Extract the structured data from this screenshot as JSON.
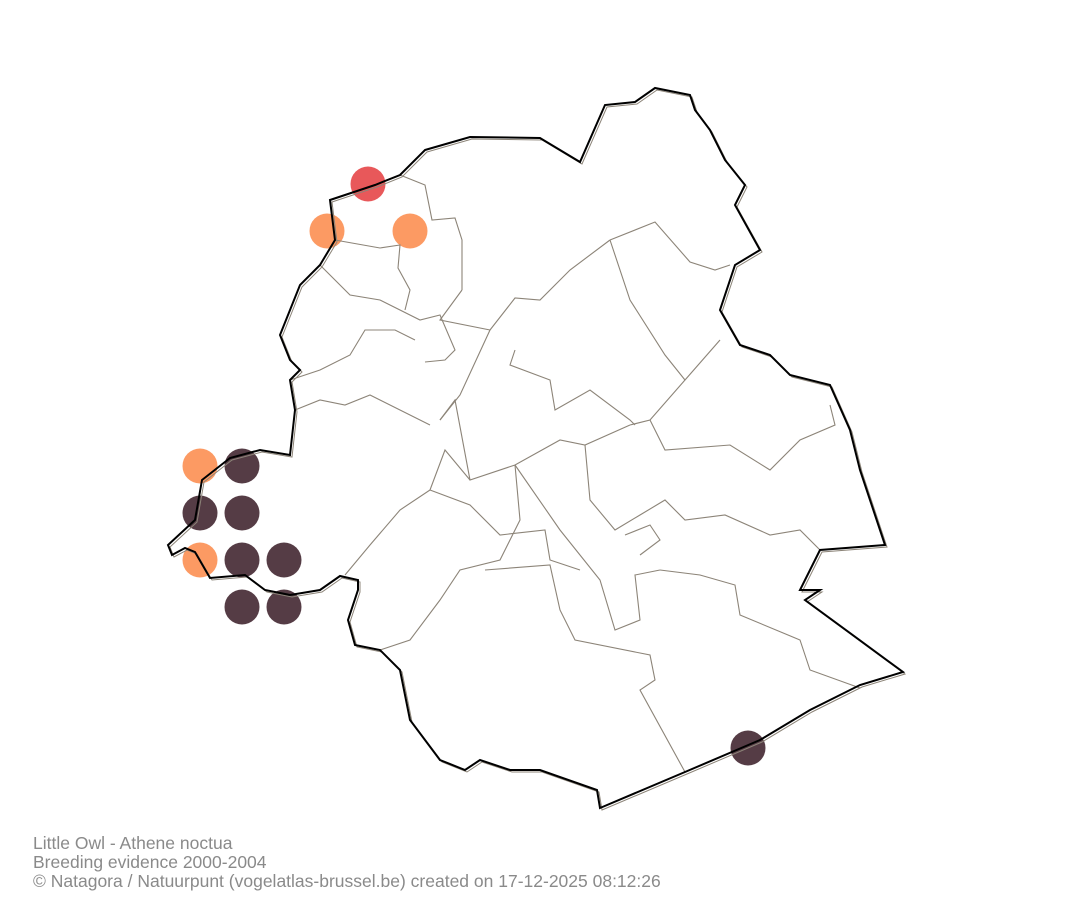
{
  "map": {
    "colors": {
      "marker_red": "#e8585a",
      "marker_orange": "#fc9a63",
      "marker_dark": "#553c45",
      "boundary": "#000000",
      "commune_lines": "#8c8478"
    }
  },
  "caption": {
    "species": "Little Owl - Athene noctua",
    "subtitle": "Breeding evidence 2000-2004",
    "credit": "© Natagora / Natuurpunt (vogelatlas-brussel.be) created on 17-12-2025 08:12:26"
  }
}
